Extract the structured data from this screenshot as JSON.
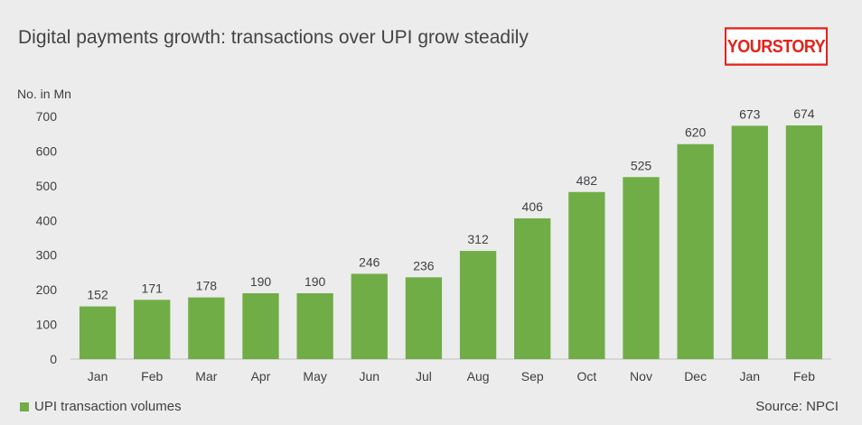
{
  "header": {
    "title": "Digital payments growth: transactions over UPI grow steadily",
    "logo_text": "YOURSTORY"
  },
  "footer": {
    "source": "Source: NPCI"
  },
  "colors": {
    "bar": "#70ad47",
    "brand": "#e2231a",
    "background": "#ececec"
  },
  "chart_data": {
    "type": "bar",
    "title": "Digital payments growth: transactions over UPI grow steadily",
    "ylabel": "No. in Mn",
    "xlabel": "",
    "categories": [
      "Jan",
      "Feb",
      "Mar",
      "Apr",
      "May",
      "Jun",
      "Jul",
      "Aug",
      "Sep",
      "Oct",
      "Nov",
      "Dec",
      "Jan",
      "Feb"
    ],
    "series": [
      {
        "name": "UPI transaction volumes",
        "values": [
          152,
          171,
          178,
          190,
          190,
          246,
          236,
          312,
          406,
          482,
          525,
          620,
          673,
          674
        ]
      }
    ],
    "ylim": [
      0,
      700
    ],
    "yticks": [
      0,
      100,
      200,
      300,
      400,
      500,
      600,
      700
    ],
    "grid": false,
    "data_labels": true,
    "legend_position": "bottom-left"
  }
}
